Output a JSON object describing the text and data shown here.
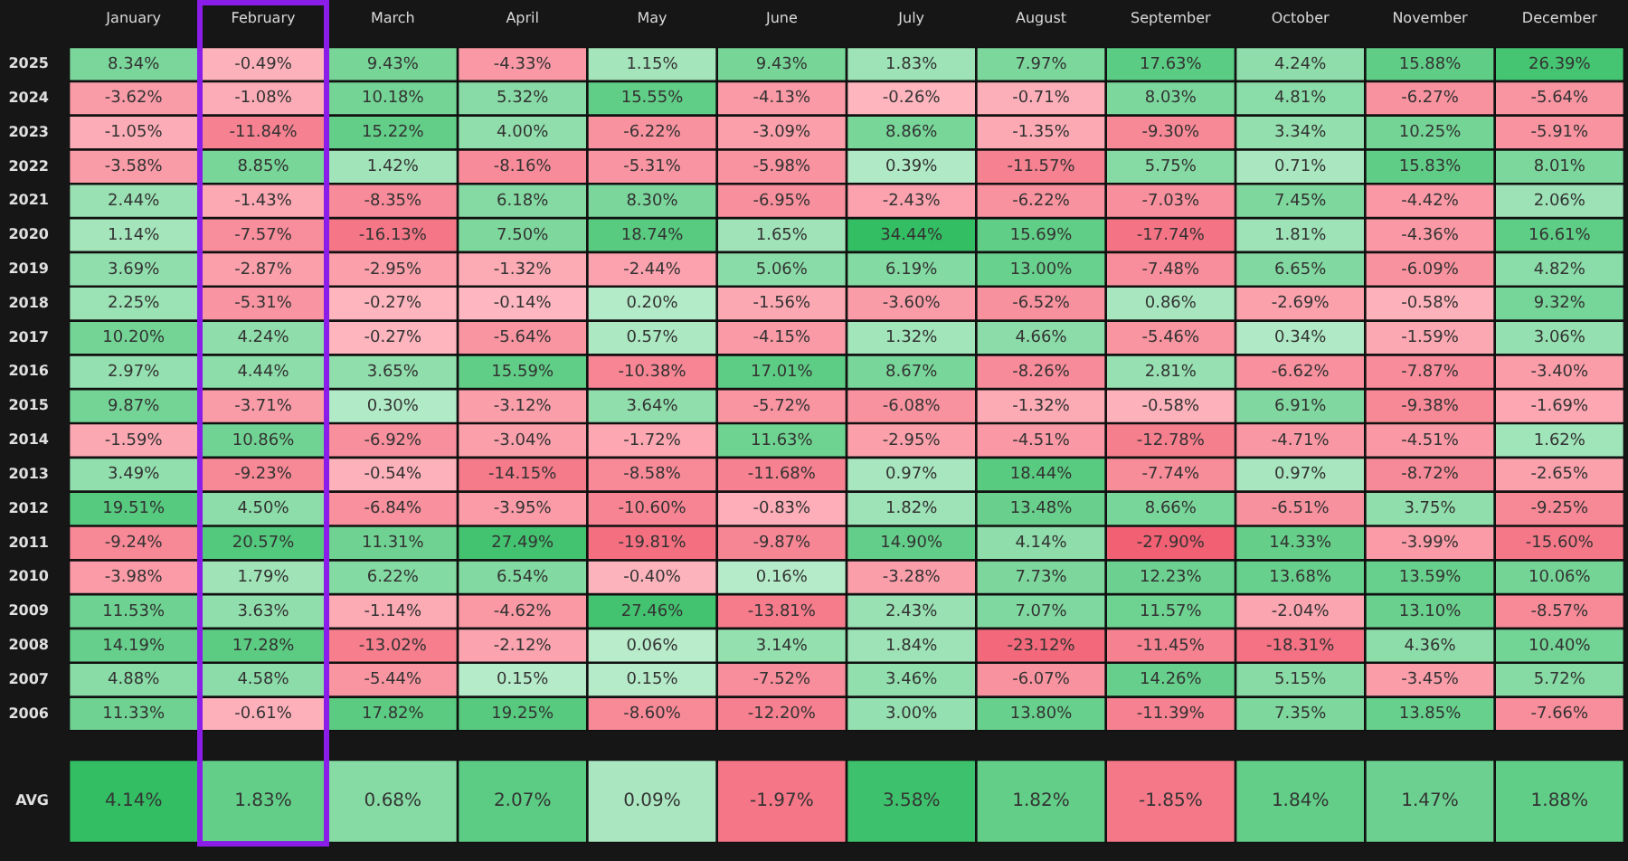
{
  "chart_data": [
    {
      "type": "heatmap",
      "categories": [
        "January",
        "February",
        "March",
        "April",
        "May",
        "June",
        "July",
        "August",
        "September",
        "October",
        "November",
        "December"
      ],
      "y_categories": [
        "2025",
        "2024",
        "2023",
        "2022",
        "2021",
        "2020",
        "2019",
        "2018",
        "2017",
        "2016",
        "2015",
        "2014",
        "2013",
        "2012",
        "2011",
        "2010",
        "2009",
        "2008",
        "2007",
        "2006"
      ],
      "cells": [
        [
          8.34,
          -0.49,
          9.43,
          -4.33,
          1.15,
          9.43,
          1.83,
          7.97,
          17.63,
          4.24,
          15.88,
          26.39
        ],
        [
          -3.62,
          -1.08,
          10.18,
          5.32,
          15.55,
          -4.13,
          -0.26,
          -0.71,
          8.03,
          4.81,
          -6.27,
          -5.64
        ],
        [
          -1.05,
          -11.84,
          15.22,
          4.0,
          -6.22,
          -3.09,
          8.86,
          -1.35,
          -9.3,
          3.34,
          10.25,
          -5.91
        ],
        [
          -3.58,
          8.85,
          1.42,
          -8.16,
          -5.31,
          -5.98,
          0.39,
          -11.57,
          5.75,
          0.71,
          15.83,
          8.01
        ],
        [
          2.44,
          -1.43,
          -8.35,
          6.18,
          8.3,
          -6.95,
          -2.43,
          -6.22,
          -7.03,
          7.45,
          -4.42,
          2.06
        ],
        [
          1.14,
          -7.57,
          -16.13,
          7.5,
          18.74,
          1.65,
          34.44,
          15.69,
          -17.74,
          1.81,
          -4.36,
          16.61
        ],
        [
          3.69,
          -2.87,
          -2.95,
          -1.32,
          -2.44,
          5.06,
          6.19,
          13.0,
          -7.48,
          6.65,
          -6.09,
          4.82
        ],
        [
          2.25,
          -5.31,
          -0.27,
          -0.14,
          0.2,
          -1.56,
          -3.6,
          -6.52,
          0.86,
          -2.69,
          -0.58,
          9.32
        ],
        [
          10.2,
          4.24,
          -0.27,
          -5.64,
          0.57,
          -4.15,
          1.32,
          4.66,
          -5.46,
          0.34,
          -1.59,
          3.06
        ],
        [
          2.97,
          4.44,
          3.65,
          15.59,
          -10.38,
          17.01,
          8.67,
          -8.26,
          2.81,
          -6.62,
          -7.87,
          -3.4
        ],
        [
          9.87,
          -3.71,
          0.3,
          -3.12,
          3.64,
          -5.72,
          -6.08,
          -1.32,
          -0.58,
          6.91,
          -9.38,
          -1.69
        ],
        [
          -1.59,
          10.86,
          -6.92,
          -3.04,
          -1.72,
          11.63,
          -2.95,
          -4.51,
          -12.78,
          -4.71,
          -4.51,
          1.62
        ],
        [
          3.49,
          -9.23,
          -0.54,
          -14.15,
          -8.58,
          -11.68,
          0.97,
          18.44,
          -7.74,
          0.97,
          -8.72,
          -2.65
        ],
        [
          19.51,
          4.5,
          -6.84,
          -3.95,
          -10.6,
          -0.83,
          1.82,
          13.48,
          8.66,
          -6.51,
          3.75,
          -9.25
        ],
        [
          -9.24,
          20.57,
          11.31,
          27.49,
          -19.81,
          -9.87,
          14.9,
          4.14,
          -27.9,
          14.33,
          -3.99,
          -15.6
        ],
        [
          -3.98,
          1.79,
          6.22,
          6.54,
          -0.4,
          0.16,
          -3.28,
          7.73,
          12.23,
          13.68,
          13.59,
          10.06
        ],
        [
          11.53,
          3.63,
          -1.14,
          -4.62,
          27.46,
          -13.81,
          2.43,
          7.07,
          11.57,
          -2.04,
          13.1,
          -8.57
        ],
        [
          14.19,
          17.28,
          -13.02,
          -2.12,
          0.06,
          3.14,
          1.84,
          -23.12,
          -11.45,
          -18.31,
          4.36,
          10.4
        ],
        [
          4.88,
          4.58,
          -5.44,
          0.15,
          0.15,
          -7.52,
          3.46,
          -6.07,
          14.26,
          5.15,
          -3.45,
          5.72
        ],
        [
          11.33,
          -0.61,
          17.82,
          19.25,
          -8.6,
          -12.2,
          3.0,
          13.8,
          -11.39,
          7.35,
          13.85,
          -7.66
        ]
      ],
      "cell_labels": [
        [
          "8.34%",
          "-0.49%",
          "9.43%",
          "-4.33%",
          "1.15%",
          "9.43%",
          "1.83%",
          "7.97%",
          "17.63%",
          "4.24%",
          "15.88%",
          "26.39%"
        ],
        [
          "-3.62%",
          "-1.08%",
          "10.18%",
          "5.32%",
          "15.55%",
          "-4.13%",
          "-0.26%",
          "-0.71%",
          "8.03%",
          "4.81%",
          "-6.27%",
          "-5.64%"
        ],
        [
          "-1.05%",
          "-11.84%",
          "15.22%",
          "4.00%",
          "-6.22%",
          "-3.09%",
          "8.86%",
          "-1.35%",
          "-9.30%",
          "3.34%",
          "10.25%",
          "-5.91%"
        ],
        [
          "-3.58%",
          "8.85%",
          "1.42%",
          "-8.16%",
          "-5.31%",
          "-5.98%",
          "0.39%",
          "-11.57%",
          "5.75%",
          "0.71%",
          "15.83%",
          "8.01%"
        ],
        [
          "2.44%",
          "-1.43%",
          "-8.35%",
          "6.18%",
          "8.30%",
          "-6.95%",
          "-2.43%",
          "-6.22%",
          "-7.03%",
          "7.45%",
          "-4.42%",
          "2.06%"
        ],
        [
          "1.14%",
          "-7.57%",
          "-16.13%",
          "7.50%",
          "18.74%",
          "1.65%",
          "34.44%",
          "15.69%",
          "-17.74%",
          "1.81%",
          "-4.36%",
          "16.61%"
        ],
        [
          "3.69%",
          "-2.87%",
          "-2.95%",
          "-1.32%",
          "-2.44%",
          "5.06%",
          "6.19%",
          "13.00%",
          "-7.48%",
          "6.65%",
          "-6.09%",
          "4.82%"
        ],
        [
          "2.25%",
          "-5.31%",
          "-0.27%",
          "-0.14%",
          "0.20%",
          "-1.56%",
          "-3.60%",
          "-6.52%",
          "0.86%",
          "-2.69%",
          "-0.58%",
          "9.32%"
        ],
        [
          "10.20%",
          "4.24%",
          "-0.27%",
          "-5.64%",
          "0.57%",
          "-4.15%",
          "1.32%",
          "4.66%",
          "-5.46%",
          "0.34%",
          "-1.59%",
          "3.06%"
        ],
        [
          "2.97%",
          "4.44%",
          "3.65%",
          "15.59%",
          "-10.38%",
          "17.01%",
          "8.67%",
          "-8.26%",
          "2.81%",
          "-6.62%",
          "-7.87%",
          "-3.40%"
        ],
        [
          "9.87%",
          "-3.71%",
          "0.30%",
          "-3.12%",
          "3.64%",
          "-5.72%",
          "-6.08%",
          "-1.32%",
          "-0.58%",
          "6.91%",
          "-9.38%",
          "-1.69%"
        ],
        [
          "-1.59%",
          "10.86%",
          "-6.92%",
          "-3.04%",
          "-1.72%",
          "11.63%",
          "-2.95%",
          "-4.51%",
          "-12.78%",
          "-4.71%",
          "-4.51%",
          "1.62%"
        ],
        [
          "3.49%",
          "-9.23%",
          "-0.54%",
          "-14.15%",
          "-8.58%",
          "-11.68%",
          "0.97%",
          "18.44%",
          "-7.74%",
          "0.97%",
          "-8.72%",
          "-2.65%"
        ],
        [
          "19.51%",
          "4.50%",
          "-6.84%",
          "-3.95%",
          "-10.60%",
          "-0.83%",
          "1.82%",
          "13.48%",
          "8.66%",
          "-6.51%",
          "3.75%",
          "-9.25%"
        ],
        [
          "-9.24%",
          "20.57%",
          "11.31%",
          "27.49%",
          "-19.81%",
          "-9.87%",
          "14.90%",
          "4.14%",
          "-27.90%",
          "14.33%",
          "-3.99%",
          "-15.60%"
        ],
        [
          "-3.98%",
          "1.79%",
          "6.22%",
          "6.54%",
          "-0.40%",
          "0.16%",
          "-3.28%",
          "7.73%",
          "12.23%",
          "13.68%",
          "13.59%",
          "10.06%"
        ],
        [
          "11.53%",
          "3.63%",
          "-1.14%",
          "-4.62%",
          "27.46%",
          "-13.81%",
          "2.43%",
          "7.07%",
          "11.57%",
          "-2.04%",
          "13.10%",
          "-8.57%"
        ],
        [
          "14.19%",
          "17.28%",
          "-13.02%",
          "-2.12%",
          "0.06%",
          "3.14%",
          "1.84%",
          "-23.12%",
          "-11.45%",
          "-18.31%",
          "4.36%",
          "10.40%"
        ],
        [
          "4.88%",
          "4.58%",
          "-5.44%",
          "0.15%",
          "0.15%",
          "-7.52%",
          "3.46%",
          "-6.07%",
          "14.26%",
          "5.15%",
          "-3.45%",
          "5.72%"
        ],
        [
          "11.33%",
          "-0.61%",
          "17.82%",
          "19.25%",
          "-8.60%",
          "-12.20%",
          "3.00%",
          "13.80%",
          "-11.39%",
          "7.35%",
          "13.85%",
          "-7.66%"
        ]
      ]
    },
    {
      "type": "heatmap",
      "categories": [
        null,
        null,
        null,
        null,
        null,
        null,
        null,
        null,
        null,
        null,
        null,
        null
      ],
      "y_categories": [
        "AVG"
      ],
      "cells": [
        [
          4.14,
          1.83,
          0.68,
          2.07,
          0.09,
          -1.97,
          3.58,
          1.82,
          -1.85,
          1.84,
          1.47,
          1.88
        ]
      ],
      "cell_labels": [
        [
          "4.14%",
          "1.83%",
          "0.68%",
          "2.07%",
          "0.09%",
          "-1.97%",
          "3.58%",
          "1.82%",
          "-1.85%",
          "1.84%",
          "1.47%",
          "1.88%"
        ]
      ],
      "tick_labels": "y"
    }
  ]
}
